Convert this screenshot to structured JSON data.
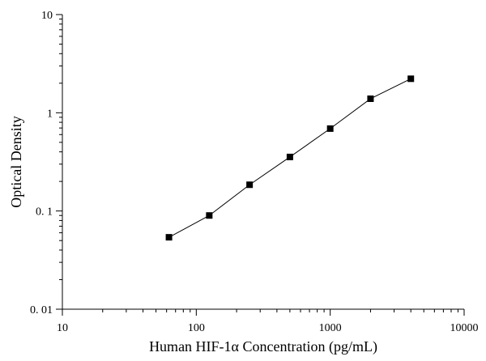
{
  "chart_data": {
    "type": "line",
    "title": "",
    "xlabel": "Human HIF-1α Concentration (pg/mL)",
    "ylabel": "Optical Density",
    "x_scale": "log",
    "y_scale": "log",
    "xlim": [
      10,
      10000
    ],
    "ylim": [
      0.01,
      10
    ],
    "x_ticks": [
      10,
      100,
      1000,
      10000
    ],
    "x_tick_labels": [
      "10",
      "100",
      "1000",
      "10000"
    ],
    "y_ticks": [
      0.01,
      0.1,
      1,
      10
    ],
    "y_tick_labels": [
      "0. 01",
      "0. 1",
      "1",
      "10"
    ],
    "grid": false,
    "legend": "none",
    "marker": "square",
    "colors": {
      "line": "#000000",
      "marker": "#000000",
      "axis": "#000000"
    },
    "series": [
      {
        "x": [
          62.5,
          125,
          250,
          500,
          1000,
          2000,
          4000
        ],
        "y": [
          0.054,
          0.09,
          0.185,
          0.355,
          0.69,
          1.39,
          2.22
        ]
      }
    ]
  }
}
